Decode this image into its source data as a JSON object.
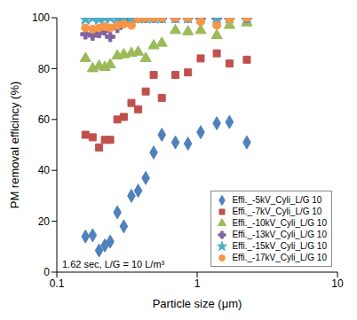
{
  "chart_data": {
    "type": "scatter",
    "x_label": "Particle size (μm)",
    "y_label": "PM removal efficincy (%)",
    "annotation": "1.62 sec, L/G = 10 L/m³",
    "log": "x",
    "grid": false,
    "legend": "lower right",
    "xlim": [
      0.1,
      10
    ],
    "xticks": [
      0.1,
      1,
      10
    ],
    "ylim": [
      0,
      100
    ],
    "yticks": [
      0,
      20,
      40,
      60,
      80,
      100
    ],
    "x": [
      0.16,
      0.18,
      0.2,
      0.22,
      0.24,
      0.27,
      0.3,
      0.34,
      0.38,
      0.43,
      0.49,
      0.56,
      0.7,
      0.86,
      1.06,
      1.38,
      1.7,
      2.26
    ],
    "series": [
      {
        "name": "Effi._-5kV_Cyli_L/G 10",
        "color": "#4F81BD",
        "marker": "diamond",
        "values": [
          14,
          14.5,
          8.5,
          10.5,
          12,
          23.5,
          18,
          30,
          32,
          37,
          47,
          54,
          51,
          50.5,
          55,
          58.5,
          59,
          51
        ]
      },
      {
        "name": "Effi._-7kV_Cyli_L/G 10",
        "color": "#C0504D",
        "marker": "square",
        "values": [
          54,
          53,
          49,
          52,
          52,
          60,
          61,
          66.5,
          64,
          71,
          77.5,
          68.5,
          77.5,
          78.5,
          84,
          86,
          82,
          83.5
        ]
      },
      {
        "name": "Effi._-10kV_Cyli_L/G 10",
        "color": "#9BBB59",
        "marker": "triangle",
        "values": [
          84,
          80,
          81,
          80.5,
          81.5,
          85,
          85.5,
          86,
          86.5,
          84,
          89,
          90,
          95,
          94.5,
          95,
          93,
          97,
          98
        ]
      },
      {
        "name": "Effi._-13kV_Cyli_L/G 10",
        "color": "#8064A2",
        "marker": "cross",
        "values": [
          93.5,
          93,
          94,
          95,
          92.5,
          96,
          99,
          99.5,
          100,
          100,
          100,
          100,
          100,
          100,
          100,
          100,
          100,
          100
        ]
      },
      {
        "name": "Effi._-15kV_Cyli_L/G 10",
        "color": "#4BACC6",
        "marker": "star",
        "values": [
          99.5,
          100,
          99.5,
          100,
          100,
          99.5,
          100,
          100,
          100,
          100,
          100,
          100,
          100,
          100,
          100,
          100,
          100,
          100
        ]
      },
      {
        "name": "Effi._-17kV_Cyli_L/G 10",
        "color": "#F79646",
        "marker": "circle",
        "values": [
          96,
          95.5,
          96,
          96.5,
          96,
          97,
          97.5,
          97,
          99.5,
          100,
          100,
          100,
          100,
          100,
          98.5,
          97,
          99.5,
          100
        ]
      }
    ]
  }
}
